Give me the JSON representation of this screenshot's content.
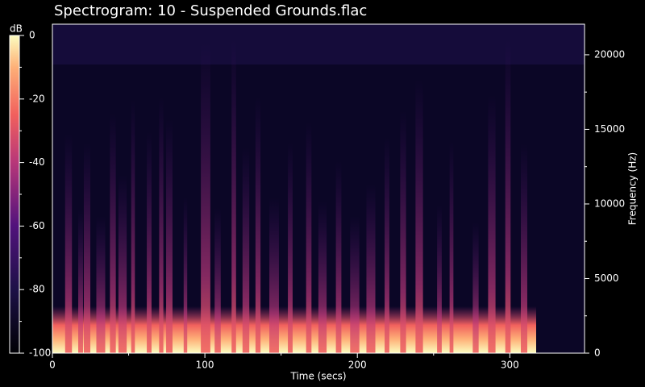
{
  "chart_data": {
    "type": "spectrogram",
    "title": "Spectrogram: 10 - Suspended Grounds.flac",
    "xlabel": "Time (secs)",
    "ylabel": "Frequency (Hz)",
    "colorbar_label": "dB",
    "xlim": [
      0,
      349
    ],
    "xticks": [
      0,
      100,
      200,
      300
    ],
    "xminorticks": [
      50,
      150,
      250
    ],
    "ylim": [
      0,
      22050
    ],
    "yticks": [
      0,
      5000,
      10000,
      15000,
      20000
    ],
    "yminorticks": [
      2500,
      7500,
      12500,
      17500
    ],
    "clim": [
      -100,
      0
    ],
    "cticks": [
      0,
      -20,
      -40,
      -60,
      -80,
      -100
    ],
    "cminorticks": [
      -10,
      -30,
      -50,
      -70,
      -90
    ]
  }
}
